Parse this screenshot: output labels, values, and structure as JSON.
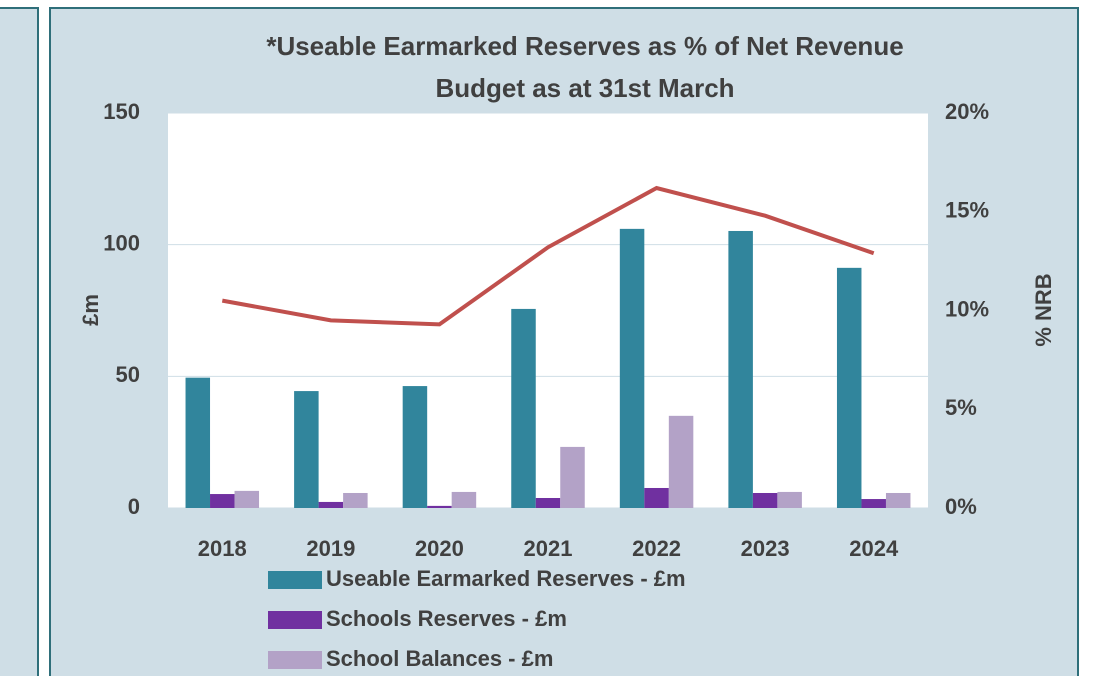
{
  "chart_data": {
    "type": "bar",
    "title": [
      "*Useable Earmarked Reserves as % of Net Revenue",
      "Budget as at 31st March"
    ],
    "y_label": "£m",
    "y2_label": "% NRB",
    "categories": [
      "2018",
      "2019",
      "2020",
      "2021",
      "2022",
      "2023",
      "2024"
    ],
    "series": [
      {
        "name": "Useable Earmarked Reserves - £m",
        "color": "#31859c",
        "values": [
          49.5,
          44.4,
          46.3,
          75.6,
          106,
          105.2,
          91.2
        ]
      },
      {
        "name": "Schools Reserves - £m",
        "color": "#7030a0",
        "values": [
          5.3,
          2.3,
          0.8,
          3.8,
          7.6,
          5.7,
          3.4
        ]
      },
      {
        "name": "School Balances - £m",
        "color": "#b3a2c7",
        "values": [
          6.5,
          5.7,
          6.1,
          23.2,
          35,
          6.1,
          5.7
        ]
      },
      {
        "type": "line",
        "axis": "y2",
        "color": "#c0504d",
        "values": [
          10.5,
          9.5,
          9.3,
          13.2,
          16.2,
          14.8,
          12.9
        ]
      }
    ],
    "ylim": [
      0,
      150
    ],
    "yticks": [
      0,
      50,
      100,
      150
    ],
    "y2lim": [
      0,
      20
    ],
    "y2ticks": [
      {
        "value": 0,
        "label": "0%"
      },
      {
        "value": 5,
        "label": "5%"
      },
      {
        "value": 10,
        "label": "10%"
      },
      {
        "value": 15,
        "label": "15%"
      },
      {
        "value": 20,
        "label": "20%"
      }
    ],
    "grid": true
  }
}
